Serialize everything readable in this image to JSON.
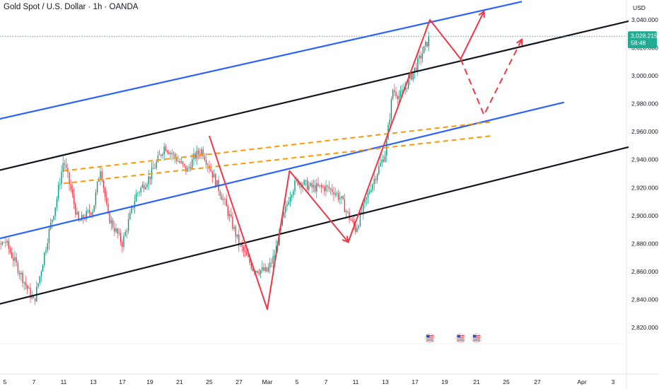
{
  "header": {
    "title": "Gold Spot / U.S. Dollar · 1h · OANDA"
  },
  "axis": {
    "currency": "USD"
  },
  "last_price": {
    "value": "3,028.215",
    "countdown": "58:48",
    "color": "#22ab94"
  },
  "events": [
    {
      "name": "us-flag-icon",
      "x": "Mar 18"
    },
    {
      "name": "us-flag-icon",
      "x": "Mar 20"
    },
    {
      "name": "us-flag-icon",
      "x": "Mar 21"
    }
  ],
  "chart_data": {
    "type": "line",
    "instrument": "Gold Spot / U.S. Dollar",
    "interval": "1h",
    "source": "OANDA",
    "x_tick_labels": [
      "5",
      "7",
      "11",
      "13",
      "17",
      "19",
      "21",
      "25",
      "27",
      "Mar",
      "5",
      "7",
      "11",
      "13",
      "17",
      "19",
      "21",
      "25",
      "27",
      "Apr",
      "3"
    ],
    "y_tick_labels": [
      "2,820.000",
      "2,840.000",
      "2,860.000",
      "2,880.000",
      "2,900.000",
      "2,920.000",
      "2,940.000",
      "2,960.000",
      "2,980.000",
      "3,000.000",
      "3,020.000",
      "3,040.000"
    ],
    "ylim": [
      2810,
      3053
    ],
    "series": [
      {
        "kind": "price_path_approx",
        "color": "#089981",
        "points": [
          [
            "Feb 3",
            2842
          ],
          [
            "Feb 4",
            2870
          ],
          [
            "Feb 5",
            2882
          ],
          [
            "Feb 6",
            2860
          ],
          [
            "Feb 7",
            2838
          ],
          [
            "Feb 8",
            2862
          ],
          [
            "Feb 9",
            2888
          ],
          [
            "Feb 10",
            2910
          ],
          [
            "Feb 11",
            2940
          ],
          [
            "Feb 12",
            2895
          ],
          [
            "Feb 13",
            2905
          ],
          [
            "Feb 14",
            2935
          ],
          [
            "Feb 15",
            2900
          ],
          [
            "Feb 16",
            2890
          ],
          [
            "Feb 17",
            2880
          ],
          [
            "Feb 18",
            2915
          ],
          [
            "Feb 19",
            2928
          ],
          [
            "Feb 20",
            2950
          ],
          [
            "Feb 21",
            2938
          ],
          [
            "Feb 22",
            2932
          ],
          [
            "Feb 23",
            2942
          ],
          [
            "Feb 24",
            2947
          ],
          [
            "Feb 25",
            2935
          ],
          [
            "Feb 26",
            2910
          ],
          [
            "Feb 27",
            2880
          ],
          [
            "Feb 28",
            2862
          ],
          [
            "Mar 1",
            2860
          ],
          [
            "Mar 2",
            2872
          ],
          [
            "Mar 3",
            2895
          ],
          [
            "Mar 4",
            2915
          ],
          [
            "Mar 5",
            2925
          ],
          [
            "Mar 6",
            2920
          ],
          [
            "Mar 7",
            2920
          ],
          [
            "Mar 8",
            2918
          ],
          [
            "Mar 9",
            2912
          ],
          [
            "Mar 10",
            2900
          ],
          [
            "Mar 11",
            2890
          ],
          [
            "Mar 12",
            2920
          ],
          [
            "Mar 13",
            2945
          ],
          [
            "Mar 14",
            2990
          ],
          [
            "Mar 15",
            2985
          ],
          [
            "Mar 16",
            2995
          ],
          [
            "Mar 17",
            3005
          ],
          [
            "Mar 18",
            3028
          ]
        ]
      }
    ],
    "lines": [
      {
        "name": "channel-upper-blue",
        "color": "#2962ff",
        "style": "solid",
        "from": [
          "Feb 2",
          2963
        ],
        "to": [
          "Mar 26",
          3053
        ]
      },
      {
        "name": "channel-upper-black",
        "color": "#131722",
        "style": "solid",
        "from": [
          "Feb 2",
          2926
        ],
        "to": [
          "Apr 5",
          3039
        ]
      },
      {
        "name": "channel-mid-blue",
        "color": "#2962ff",
        "style": "solid",
        "from": [
          "Feb 4",
          2882
        ],
        "to": [
          "Mar 30",
          2981
        ]
      },
      {
        "name": "channel-lower-black",
        "color": "#131722",
        "style": "solid",
        "from": [
          "Feb 2",
          2830
        ],
        "to": [
          "Apr 5",
          2949
        ]
      },
      {
        "name": "resistance-dashed-1",
        "color": "#ff9800",
        "style": "dashed",
        "from": [
          "Feb 11",
          2932
        ],
        "to": [
          "Mar 23",
          2967
        ]
      },
      {
        "name": "resistance-dashed-2",
        "color": "#ff9800",
        "style": "dashed",
        "from": [
          "Feb 11",
          2923
        ],
        "to": [
          "Mar 23",
          2957
        ]
      }
    ],
    "projection": {
      "color": "#f23645",
      "points": [
        [
          "Feb 25",
          2957
        ],
        [
          "Feb 29",
          2833
        ],
        [
          "Mar 4",
          2932
        ],
        [
          "Mar 10",
          2881
        ],
        [
          "Mar 18",
          3040
        ],
        [
          "Mar 20",
          3012
        ],
        [
          "Mar 22",
          3046
        ]
      ],
      "dashed": [
        [
          "Mar 20",
          3012
        ],
        [
          "Mar 22",
          2972
        ],
        [
          "Mar 26",
          3026
        ]
      ]
    },
    "last_price_line": 3028.215
  }
}
